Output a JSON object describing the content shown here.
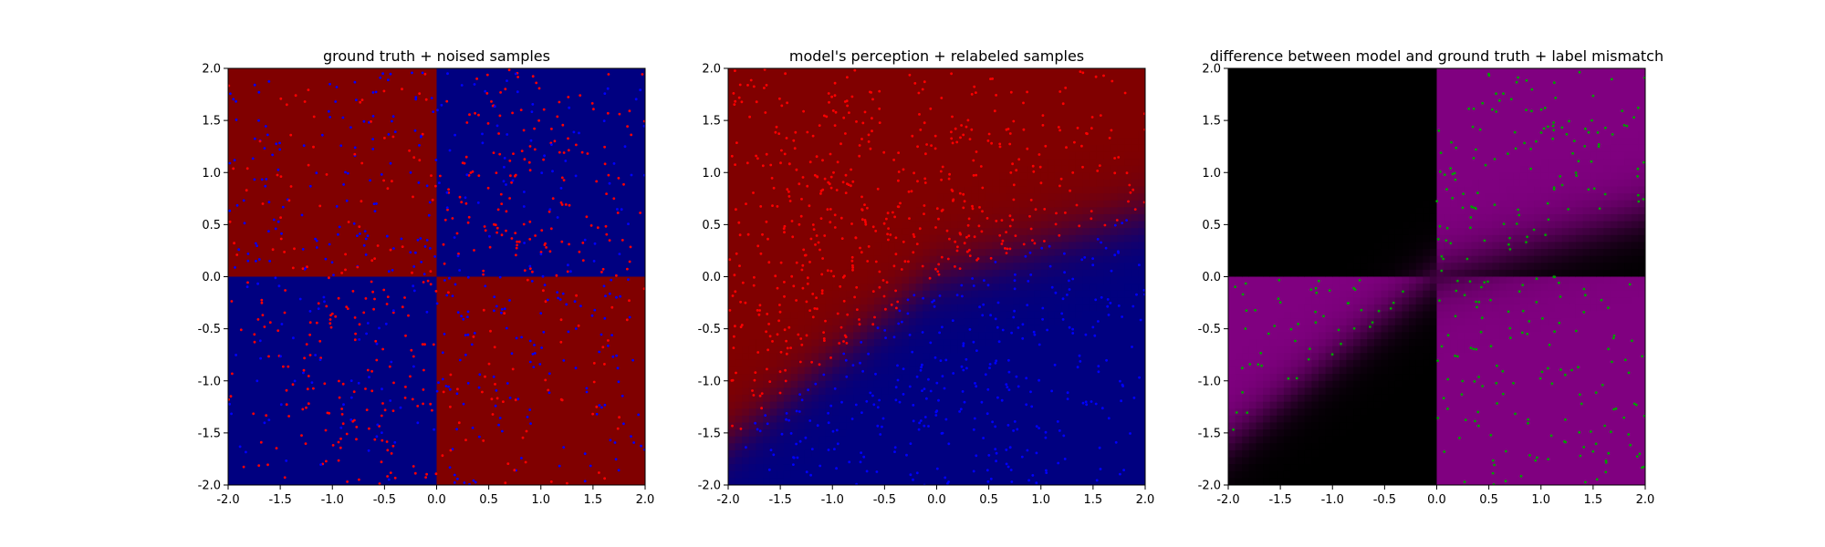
{
  "chart_data": [
    {
      "type": "heatmap+scatter",
      "title": "ground truth + noised samples",
      "xlabel": "",
      "ylabel": "",
      "xlim": [
        -2.0,
        2.0
      ],
      "ylim": [
        -2.0,
        2.0
      ],
      "xticks": [
        "-2.0",
        "-1.5",
        "-1.0",
        "-0.5",
        "0.0",
        "0.5",
        "1.0",
        "1.5",
        "2.0"
      ],
      "yticks": [
        "-2.0",
        "-1.5",
        "-1.0",
        "-0.5",
        "0.0",
        "0.5",
        "1.0",
        "1.5",
        "2.0"
      ],
      "grid": false,
      "background_regions": [
        {
          "x": [
            -2.0,
            0.0
          ],
          "y": [
            0.0,
            2.0
          ],
          "color": "#800000"
        },
        {
          "x": [
            0.0,
            2.0
          ],
          "y": [
            0.0,
            2.0
          ],
          "color": "#000080"
        },
        {
          "x": [
            -2.0,
            0.0
          ],
          "y": [
            -2.0,
            0.0
          ],
          "color": "#000080"
        },
        {
          "x": [
            0.0,
            2.0
          ],
          "y": [
            -2.0,
            0.0
          ],
          "color": "#800000"
        }
      ],
      "scatter": [
        {
          "color": "#ff0000",
          "density": "dense in quadrants where x*y > 0, sparse elsewhere"
        },
        {
          "color": "#0000ff",
          "density": "dense in quadrants where x*y < 0, sparse elsewhere"
        }
      ]
    },
    {
      "type": "heatmap+scatter",
      "title": "model's perception + relabeled samples",
      "xlabel": "",
      "ylabel": "",
      "xlim": [
        -2.0,
        2.0
      ],
      "ylim": [
        -2.0,
        2.0
      ],
      "xticks": [
        "-2.0",
        "-1.5",
        "-1.0",
        "-0.5",
        "0.0",
        "0.5",
        "1.0",
        "1.5",
        "2.0"
      ],
      "yticks": [
        "-2.0",
        "-1.5",
        "-1.0",
        "-0.5",
        "0.0",
        "0.5",
        "1.0",
        "1.5",
        "2.0"
      ],
      "grid": false,
      "decision_boundary": {
        "passes_through": [
          [
            -2.0,
            -1.6
          ],
          [
            0.0,
            0.0
          ],
          [
            2.0,
            0.6
          ]
        ],
        "above_color": "#800000",
        "below_color": "#000080"
      },
      "scatter": [
        {
          "color": "#ff0000",
          "region": "above decision boundary, mostly x < 0"
        },
        {
          "color": "#0000ff",
          "region": "below decision boundary"
        }
      ]
    },
    {
      "type": "heatmap+scatter",
      "title": "difference between model and ground truth + label mismatch",
      "xlabel": "",
      "ylabel": "",
      "xlim": [
        -2.0,
        2.0
      ],
      "ylim": [
        -2.0,
        2.0
      ],
      "xticks": [
        "-2.0",
        "-1.5",
        "-1.0",
        "-0.5",
        "0.0",
        "0.5",
        "1.0",
        "1.5",
        "2.0"
      ],
      "yticks": [
        "-2.0",
        "-1.5",
        "-1.0",
        "-0.5",
        "0.0",
        "0.5",
        "1.0",
        "1.5",
        "2.0"
      ],
      "grid": false,
      "colors": {
        "match": "#000000",
        "mismatch": "#800080"
      },
      "scatter": [
        {
          "color": "#00a000",
          "region": "label mismatch samples"
        }
      ]
    }
  ]
}
